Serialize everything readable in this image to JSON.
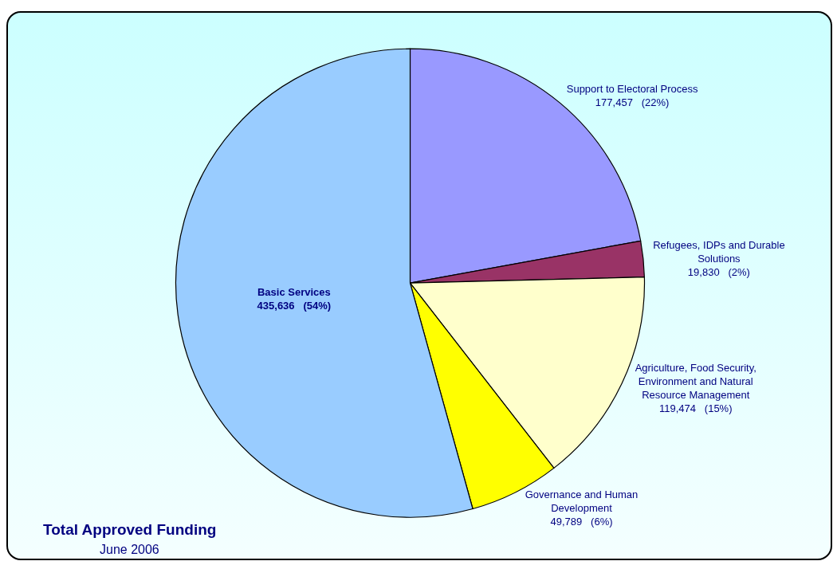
{
  "chart_data": {
    "type": "pie",
    "title": "Total Approved Funding",
    "subtitle": "June 2006",
    "categories": [
      "Support to Electoral Process",
      "Refugees, IDPs and Durable Solutions",
      "Agriculture, Food Security, Environment and Natural Resource Management",
      "Governance and Human Development",
      "Basic Services"
    ],
    "values": [
      177457,
      19830,
      119474,
      49789,
      435636
    ],
    "colors": [
      "#9999ff",
      "#993366",
      "#ffffcc",
      "#ffff00",
      "#99ccff"
    ],
    "value_labels": [
      "177,457   (22%)",
      "19,830   (2%)",
      "119,474   (15%)",
      "49,789   (6%)",
      "435,636   (54%)"
    ],
    "legend": false
  }
}
